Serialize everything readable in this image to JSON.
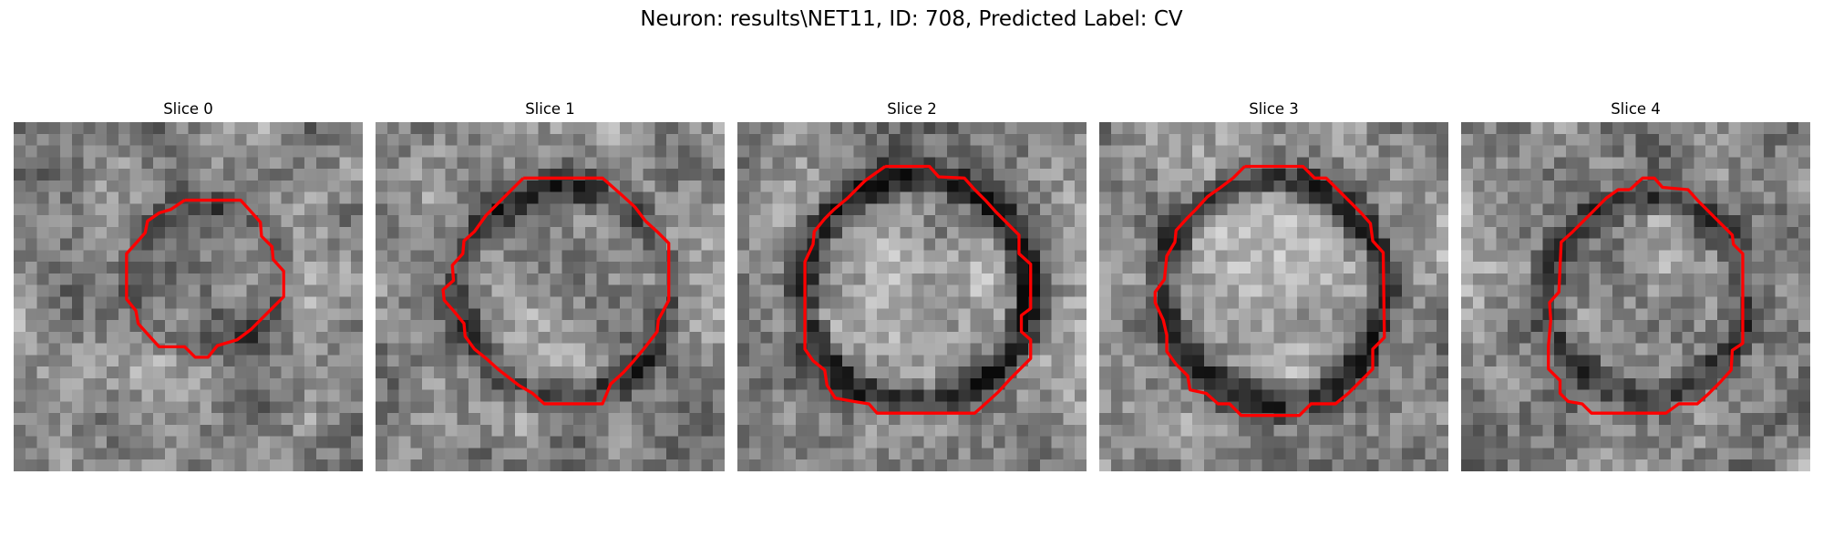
{
  "figure": {
    "title": "Neuron: results\\NET11, ID: 708, Predicted Label: CV"
  },
  "panels": [
    {
      "title": "Slice 0",
      "contour_color": "#ff0000"
    },
    {
      "title": "Slice 1",
      "contour_color": "#ff0000"
    },
    {
      "title": "Slice 2",
      "contour_color": "#ff0000"
    },
    {
      "title": "Slice 3",
      "contour_color": "#ff0000"
    },
    {
      "title": "Slice 4",
      "contour_color": "#ff0000"
    }
  ],
  "colormap": "gray"
}
